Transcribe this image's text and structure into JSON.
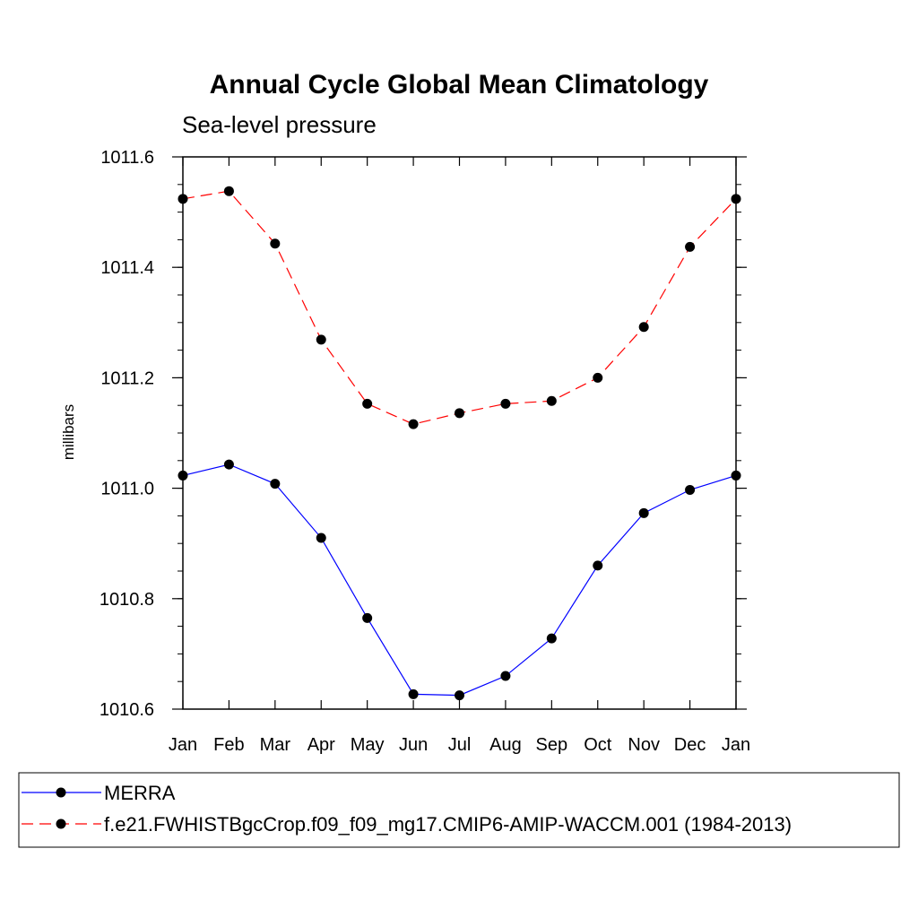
{
  "chart_data": {
    "type": "line",
    "title": "Annual Cycle Global Mean Climatology",
    "subtitle": "Sea-level pressure",
    "xlabel": "",
    "ylabel": "millibars",
    "categories": [
      "Jan",
      "Feb",
      "Mar",
      "Apr",
      "May",
      "Jun",
      "Jul",
      "Aug",
      "Sep",
      "Oct",
      "Nov",
      "Dec",
      "Jan"
    ],
    "ylim": [
      1010.6,
      1011.6
    ],
    "yticks": [
      "1010.6",
      "1010.8",
      "1011.0",
      "1011.2",
      "1011.4",
      "1011.6"
    ],
    "grid": false,
    "legend_position": "bottom",
    "series": [
      {
        "name": "MERRA",
        "color": "#0000ff",
        "line_style": "solid",
        "marker": "filled-circle",
        "values": [
          1011.023,
          1011.043,
          1011.008,
          1010.91,
          1010.765,
          1010.627,
          1010.625,
          1010.66,
          1010.728,
          1010.86,
          1010.955,
          1010.997,
          1011.023
        ]
      },
      {
        "name": "f.e21.FWHISTBgcCrop.f09_f09_mg17.CMIP6-AMIP-WACCM.001 (1984-2013)",
        "color": "#ff0000",
        "line_style": "dashed",
        "marker": "filled-circle",
        "values": [
          1011.524,
          1011.538,
          1011.443,
          1011.269,
          1011.153,
          1011.116,
          1011.136,
          1011.153,
          1011.158,
          1011.2,
          1011.292,
          1011.437,
          1011.524
        ]
      }
    ]
  }
}
